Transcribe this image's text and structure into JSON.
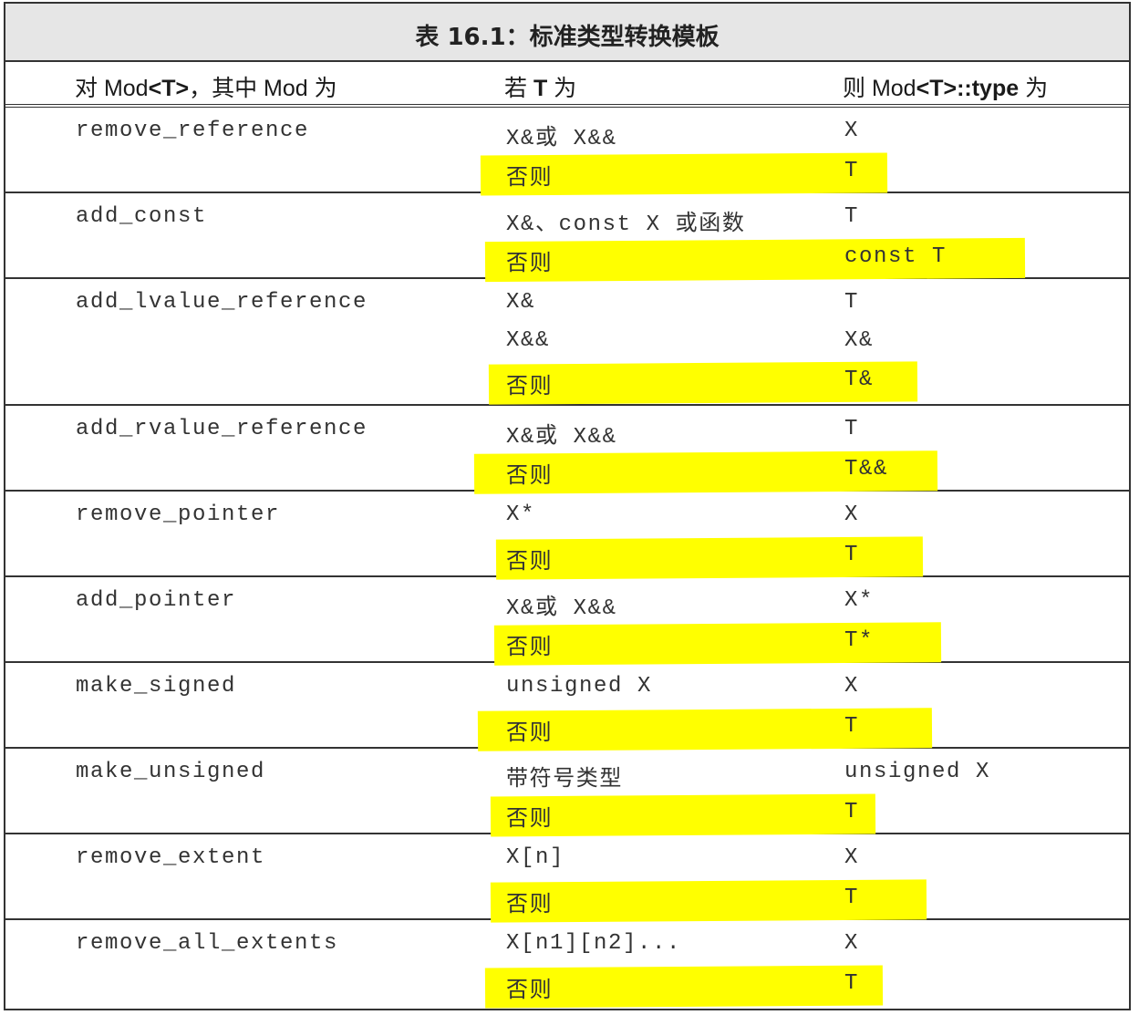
{
  "table": {
    "title": "表 16.1：标准类型转换模板",
    "headers": {
      "mod_prefix": "对 Mod",
      "mod_tag": "<T>",
      "mod_suffix": "，其中 Mod 为",
      "if_prefix": "若 ",
      "if_tag": "T",
      "if_suffix": " 为",
      "then_prefix": "则 Mod",
      "then_tag": "<T>::type",
      "then_suffix": " 为"
    },
    "highlight_color": "#ffff00",
    "rows": [
      {
        "mod": "remove_reference",
        "cases": [
          {
            "condition": "X&或 X&&",
            "result": "X",
            "highlighted": false
          },
          {
            "condition": "否则",
            "result": "T",
            "highlighted": true
          }
        ]
      },
      {
        "mod": "add_const",
        "cases": [
          {
            "condition": "X&、const X 或函数",
            "result": "T",
            "highlighted": false
          },
          {
            "condition": "否则",
            "result": "const T",
            "highlighted": true
          }
        ]
      },
      {
        "mod": "add_lvalue_reference",
        "cases": [
          {
            "condition": "X&",
            "result": "T",
            "highlighted": false
          },
          {
            "condition": "X&&",
            "result": "X&",
            "highlighted": false
          },
          {
            "condition": "否则",
            "result": "T&",
            "highlighted": true
          }
        ]
      },
      {
        "mod": "add_rvalue_reference",
        "cases": [
          {
            "condition": "X&或 X&&",
            "result": "T",
            "highlighted": false
          },
          {
            "condition": "否则",
            "result": "T&&",
            "highlighted": true
          }
        ]
      },
      {
        "mod": "remove_pointer",
        "cases": [
          {
            "condition": "X*",
            "result": "X",
            "highlighted": false
          },
          {
            "condition": "否则",
            "result": "T",
            "highlighted": true
          }
        ]
      },
      {
        "mod": "add_pointer",
        "cases": [
          {
            "condition": "X&或 X&&",
            "result": "X*",
            "highlighted": false
          },
          {
            "condition": "否则",
            "result": "T*",
            "highlighted": true
          }
        ]
      },
      {
        "mod": "make_signed",
        "cases": [
          {
            "condition": "unsigned X",
            "result": "X",
            "highlighted": false
          },
          {
            "condition": "否则",
            "result": "T",
            "highlighted": true
          }
        ]
      },
      {
        "mod": "make_unsigned",
        "cases": [
          {
            "condition": "带符号类型",
            "result": "unsigned X",
            "highlighted": false
          },
          {
            "condition": "否则",
            "result": "T",
            "highlighted": true
          }
        ]
      },
      {
        "mod": "remove_extent",
        "cases": [
          {
            "condition": "X[n]",
            "result": "X",
            "highlighted": false
          },
          {
            "condition": "否则",
            "result": "T",
            "highlighted": true
          }
        ]
      },
      {
        "mod": "remove_all_extents",
        "cases": [
          {
            "condition": "X[n1][n2]...",
            "result": "X",
            "highlighted": false
          },
          {
            "condition": "否则",
            "result": "T",
            "highlighted": true
          }
        ]
      }
    ]
  }
}
